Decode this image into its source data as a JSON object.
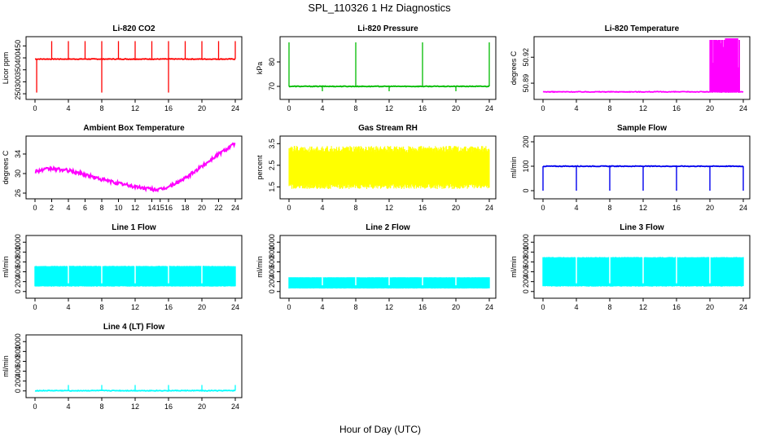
{
  "figure": {
    "title": "SPL_110326  1 Hz Diagnostics",
    "xlabel": "Hour of Day (UTC)"
  },
  "chart_data": [
    {
      "id": "co2",
      "type": "line",
      "title": "Li-820 CO2",
      "ylabel": "Licor ppm",
      "color": "#ff0000",
      "x": [
        0,
        4,
        8,
        12,
        16,
        20,
        24
      ],
      "xlim": [
        0,
        24
      ],
      "ylim": [
        240,
        475
      ],
      "yticks": [
        250,
        300,
        350,
        400,
        450
      ],
      "baseline": 395,
      "spikes_up": {
        "hours": [
          2,
          4,
          6,
          8,
          10,
          12,
          14,
          16,
          18,
          20,
          22,
          24
        ],
        "value": 470
      },
      "spikes_down": {
        "hours": [
          0.2,
          8,
          16
        ],
        "value": 255
      },
      "min": 255,
      "max": 470
    },
    {
      "id": "pressure",
      "type": "line",
      "title": "Li-820 Pressure",
      "ylabel": "kPa",
      "color": "#00bb00",
      "x": [
        0,
        4,
        8,
        12,
        16,
        20,
        24
      ],
      "xlim": [
        0,
        24
      ],
      "ylim": [
        66,
        89
      ],
      "yticks": [
        70,
        80
      ],
      "baseline": 70,
      "spikes_up": {
        "hours": [
          0,
          8,
          16,
          24
        ],
        "value": 88
      },
      "spikes_down": {
        "hours": [
          4,
          12,
          20
        ],
        "value": 68
      },
      "min": 68,
      "max": 88
    },
    {
      "id": "li_temp",
      "type": "line",
      "title": "Li-820 Temperature",
      "ylabel": "degrees C",
      "color": "#ff00ff",
      "x": [
        0,
        4,
        8,
        12,
        16,
        20,
        24
      ],
      "xlim": [
        0,
        24
      ],
      "ylim": [
        50.875,
        50.94
      ],
      "yticks": [
        50.89,
        50.92
      ],
      "baseline": 50.88,
      "noise_start_hour": 20,
      "max": 50.94
    },
    {
      "id": "box_temp",
      "type": "line",
      "title": "Ambient Box Temperature",
      "ylabel": "degrees C",
      "color": "#ff00ff",
      "x": [
        0,
        2,
        4,
        6,
        8,
        10,
        12,
        14,
        15,
        16,
        18,
        20,
        22,
        24
      ],
      "xlim": [
        0,
        24
      ],
      "ylim": [
        25.5,
        37
      ],
      "yticks": [
        26,
        30,
        34
      ],
      "values": [
        30.5,
        31.0,
        30.6,
        29.8,
        28.8,
        28.0,
        27.3,
        26.8,
        26.7,
        27.3,
        29.0,
        31.5,
        34.0,
        36.2
      ]
    },
    {
      "id": "rh",
      "type": "line",
      "title": "Gas Stream RH",
      "ylabel": "percent",
      "color": "#ffff00",
      "x": [
        0,
        4,
        8,
        12,
        16,
        20,
        24
      ],
      "xlim": [
        0,
        24
      ],
      "ylim": [
        1.1,
        3.7
      ],
      "yticks": [
        1.5,
        2.5,
        3.5
      ],
      "band_low": 1.4,
      "band_high": 3.4
    },
    {
      "id": "sample_flow",
      "type": "line",
      "title": "Sample Flow",
      "ylabel": "ml/min",
      "color": "#0000ee",
      "x": [
        0,
        4,
        8,
        12,
        16,
        20,
        24
      ],
      "xlim": [
        0,
        24
      ],
      "ylim": [
        -20,
        210
      ],
      "yticks": [
        0,
        100,
        200
      ],
      "baseline": 100,
      "dips": {
        "hours": [
          0,
          4,
          8,
          12,
          16,
          20,
          24
        ],
        "value": 0
      }
    },
    {
      "id": "line1",
      "type": "area",
      "title": "Line 1 Flow",
      "ylabel": "ml/min",
      "color": "#00ffff",
      "x": [
        0,
        4,
        8,
        12,
        16,
        20,
        24
      ],
      "xlim": [
        0,
        24
      ],
      "ylim": [
        -70,
        1070
      ],
      "yticks": [
        0,
        200,
        400,
        600,
        800,
        1000
      ],
      "band_low": 100,
      "band_high": 520,
      "gaps": [
        4,
        8,
        12,
        16,
        20
      ]
    },
    {
      "id": "line2",
      "type": "area",
      "title": "Line 2 Flow",
      "ylabel": "ml/min",
      "color": "#00ffff",
      "x": [
        0,
        4,
        8,
        12,
        16,
        20,
        24
      ],
      "xlim": [
        0,
        24
      ],
      "ylim": [
        -70,
        1070
      ],
      "yticks": [
        0,
        200,
        400,
        600,
        800,
        1000
      ],
      "band_low": 60,
      "band_high": 290,
      "gaps": [
        4,
        8,
        12,
        16,
        20
      ]
    },
    {
      "id": "line3",
      "type": "area",
      "title": "Line 3 Flow",
      "ylabel": "ml/min",
      "color": "#00ffff",
      "x": [
        0,
        4,
        8,
        12,
        16,
        20,
        24
      ],
      "xlim": [
        0,
        24
      ],
      "ylim": [
        -70,
        1070
      ],
      "yticks": [
        0,
        200,
        400,
        600,
        800,
        1000
      ],
      "band_low": 100,
      "band_high": 700,
      "gaps": [
        4,
        8,
        12,
        16,
        20
      ]
    },
    {
      "id": "line4",
      "type": "line",
      "title": "Line 4 (LT) Flow",
      "ylabel": "ml/min",
      "color": "#00ffff",
      "x": [
        0,
        4,
        8,
        12,
        16,
        20,
        24
      ],
      "xlim": [
        0,
        24
      ],
      "ylim": [
        -70,
        1070
      ],
      "yticks": [
        0,
        200,
        400,
        600,
        800,
        1000
      ],
      "baseline": 5,
      "spikes_up": {
        "hours": [
          4,
          8,
          12,
          16,
          20,
          24
        ],
        "value": 120
      }
    }
  ]
}
